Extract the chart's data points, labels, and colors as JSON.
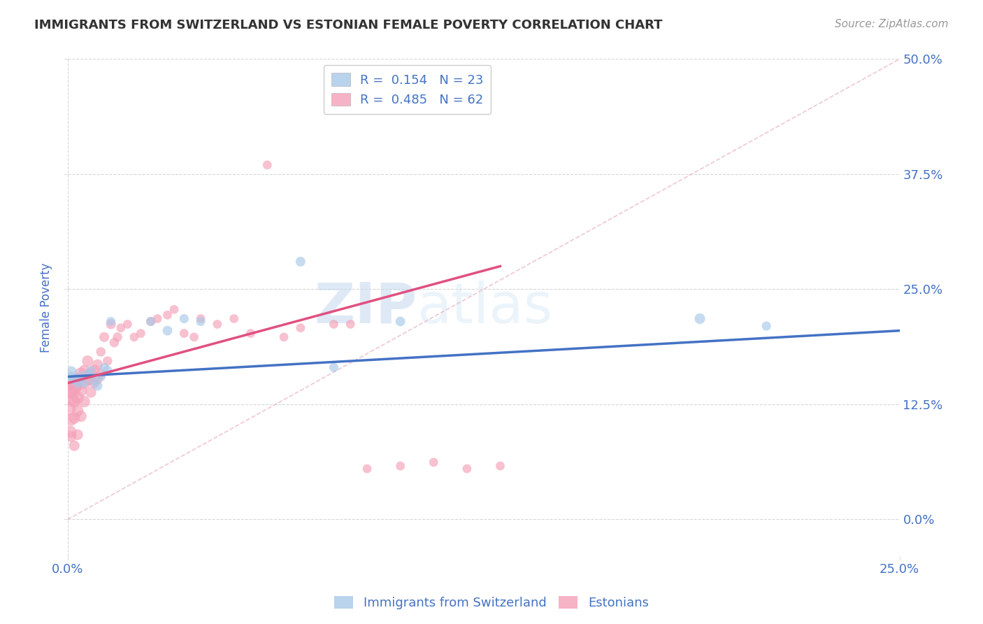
{
  "title": "IMMIGRANTS FROM SWITZERLAND VS ESTONIAN FEMALE POVERTY CORRELATION CHART",
  "source": "Source: ZipAtlas.com",
  "ylabel": "Female Poverty",
  "xmin": 0.0,
  "xmax": 0.25,
  "ymin": -0.04,
  "ymax": 0.5,
  "yticks": [
    0.0,
    0.125,
    0.25,
    0.375,
    0.5
  ],
  "ytick_labels": [
    "0.0%",
    "12.5%",
    "25.0%",
    "37.5%",
    "50.0%"
  ],
  "xticks": [
    0.0,
    0.25
  ],
  "xtick_labels": [
    "0.0%",
    "25.0%"
  ],
  "background_color": "#ffffff",
  "grid_color": "#cccccc",
  "axis_label_color": "#4472c4",
  "watermark_zip": "ZIP",
  "watermark_atlas": "atlas",
  "blue_color": "#a8c8e8",
  "pink_color": "#f4a0b8",
  "line_blue": "#4472c4",
  "line_pink": "#e05080",
  "diag_color": "#e0a0b0",
  "swiss_points_x": [
    0.001,
    0.001,
    0.002,
    0.003,
    0.004,
    0.005,
    0.006,
    0.007,
    0.008,
    0.009,
    0.01,
    0.011,
    0.012,
    0.013,
    0.025,
    0.03,
    0.035,
    0.04,
    0.07,
    0.08,
    0.1,
    0.19,
    0.21
  ],
  "swiss_points_y": [
    0.155,
    0.16,
    0.152,
    0.148,
    0.155,
    0.148,
    0.158,
    0.162,
    0.15,
    0.145,
    0.155,
    0.165,
    0.162,
    0.215,
    0.215,
    0.205,
    0.218,
    0.215,
    0.28,
    0.165,
    0.215,
    0.218,
    0.21
  ],
  "swiss_sizes": [
    100,
    150,
    110,
    100,
    100,
    90,
    90,
    80,
    90,
    100,
    90,
    90,
    90,
    90,
    90,
    100,
    90,
    90,
    100,
    90,
    100,
    120,
    90
  ],
  "estonian_points_x": [
    0.0005,
    0.0005,
    0.0008,
    0.001,
    0.001,
    0.001,
    0.001,
    0.0015,
    0.002,
    0.002,
    0.002,
    0.002,
    0.0025,
    0.003,
    0.003,
    0.003,
    0.003,
    0.004,
    0.004,
    0.004,
    0.005,
    0.005,
    0.005,
    0.006,
    0.006,
    0.007,
    0.007,
    0.008,
    0.008,
    0.009,
    0.009,
    0.01,
    0.01,
    0.011,
    0.012,
    0.013,
    0.014,
    0.015,
    0.016,
    0.018,
    0.02,
    0.022,
    0.025,
    0.027,
    0.03,
    0.032,
    0.035,
    0.038,
    0.04,
    0.045,
    0.05,
    0.055,
    0.06,
    0.065,
    0.07,
    0.08,
    0.085,
    0.09,
    0.1,
    0.11,
    0.12,
    0.13
  ],
  "estonian_points_y": [
    0.14,
    0.12,
    0.095,
    0.148,
    0.138,
    0.108,
    0.09,
    0.13,
    0.142,
    0.128,
    0.11,
    0.08,
    0.145,
    0.152,
    0.132,
    0.118,
    0.092,
    0.158,
    0.14,
    0.112,
    0.148,
    0.128,
    0.162,
    0.152,
    0.172,
    0.158,
    0.138,
    0.162,
    0.148,
    0.168,
    0.152,
    0.158,
    0.182,
    0.198,
    0.172,
    0.212,
    0.192,
    0.198,
    0.208,
    0.212,
    0.198,
    0.202,
    0.215,
    0.218,
    0.222,
    0.228,
    0.202,
    0.198,
    0.218,
    0.212,
    0.218,
    0.202,
    0.385,
    0.198,
    0.208,
    0.212,
    0.212,
    0.055,
    0.058,
    0.062,
    0.055,
    0.058
  ],
  "estonian_sizes": [
    220,
    180,
    160,
    200,
    170,
    150,
    130,
    180,
    190,
    160,
    140,
    120,
    180,
    190,
    165,
    145,
    125,
    175,
    155,
    135,
    165,
    145,
    125,
    155,
    135,
    145,
    125,
    135,
    115,
    125,
    105,
    115,
    95,
    105,
    95,
    105,
    95,
    95,
    85,
    85,
    85,
    85,
    90,
    85,
    85,
    85,
    85,
    85,
    85,
    85,
    85,
    85,
    85,
    85,
    85,
    85,
    85,
    85,
    85,
    85,
    85,
    85
  ],
  "blue_line_x0": 0.0,
  "blue_line_y0": 0.155,
  "blue_line_x1": 0.25,
  "blue_line_y1": 0.205,
  "pink_line_x0": 0.0,
  "pink_line_y0": 0.148,
  "pink_line_x1": 0.13,
  "pink_line_y1": 0.275
}
